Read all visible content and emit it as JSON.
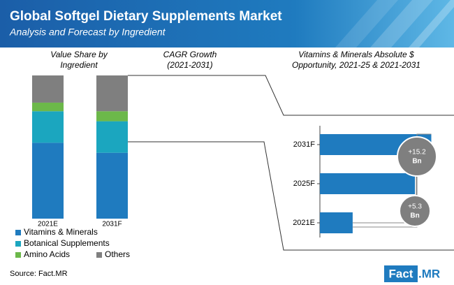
{
  "header": {
    "title": "Global Softgel Dietary Supplements Market",
    "subtitle": "Analysis and Forecast by Ingredient"
  },
  "cagr_header": [
    "CAGR Growth",
    "(2021-2031)"
  ],
  "chart_data": [
    {
      "type": "stacked-bar",
      "title": [
        "Value Share by",
        "Ingredient"
      ],
      "categories": [
        "2021E",
        "2031F"
      ],
      "ylim": [
        0,
        100
      ],
      "series": [
        {
          "name": "Vitamins & Minerals",
          "color": "#1f7bbf",
          "values": [
            53,
            46
          ]
        },
        {
          "name": "Botanical Supplements",
          "color": "#1ba6bf",
          "values": [
            22,
            22
          ]
        },
        {
          "name": "Amino Acids",
          "color": "#6cb84a",
          "values": [
            6,
            7
          ]
        },
        {
          "name": "Others",
          "color": "#7f7f7f",
          "values": [
            19,
            25
          ]
        }
      ]
    },
    {
      "type": "hbar",
      "title": [
        "Vitamins & Minerals Absolute $",
        "Opportunity, 2021-25 & 2021-2031"
      ],
      "categories": [
        "2021E",
        "2025F",
        "2031F"
      ],
      "values": [
        30,
        87,
        102
      ],
      "xlim": [
        0,
        110
      ],
      "color": "#1f7bbf",
      "annotations": [
        {
          "text": "+5.3",
          "unit": "Bn"
        },
        {
          "text": "+15.2",
          "unit": "Bn"
        }
      ]
    }
  ],
  "footer": {
    "source": "Source: Fact.MR",
    "logo": [
      "Fact",
      ".MR"
    ]
  }
}
